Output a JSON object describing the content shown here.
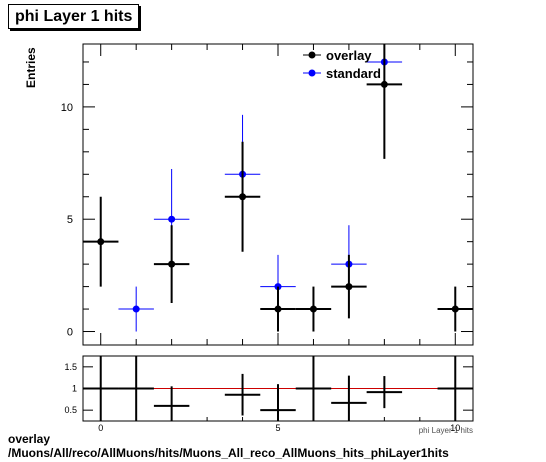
{
  "title": "phi Layer 1 hits",
  "footer": {
    "line1": "overlay",
    "line2": "/Muons/All/reco/AllMuons/hits/Muons_All_reco_AllMuons_hits_phiLayer1hits"
  },
  "colors": {
    "overlay": "#000000",
    "standard": "#0000ff",
    "ratio_line": "#cc0000"
  },
  "chart_data": [
    {
      "type": "scatter",
      "ylabel": "Entries",
      "xlabel": "phi Layer 1 hits",
      "xlim": [
        -0.5,
        10.5
      ],
      "ylim": [
        -0.6,
        12.8
      ],
      "x_ticks": [
        "0",
        "5",
        "10"
      ],
      "y_ticks": [
        "0",
        "5",
        "10"
      ],
      "legend": {
        "position": "top-right",
        "entries": [
          "overlay",
          "standard"
        ]
      },
      "series": [
        {
          "name": "overlay",
          "x": [
            0,
            2,
            4,
            5,
            6,
            7,
            8,
            10
          ],
          "y": [
            4,
            3,
            6,
            1,
            1,
            2,
            11,
            1
          ]
        },
        {
          "name": "standard",
          "x": [
            1,
            2,
            4,
            5,
            7,
            8
          ],
          "y": [
            1,
            5,
            7,
            2,
            3,
            12
          ]
        }
      ]
    },
    {
      "type": "scatter",
      "xlim": [
        -0.5,
        10.5
      ],
      "ylim": [
        0.25,
        1.75
      ],
      "y_ticks": [
        "0.5",
        "1",
        "1.5"
      ],
      "x_ticks": [
        "0",
        "5",
        "10"
      ],
      "reference_line": 1,
      "series": [
        {
          "name": "ratio",
          "x": [
            2,
            4,
            5,
            7,
            8
          ],
          "y": [
            0.6,
            0.857,
            0.5,
            0.667,
            0.917
          ],
          "yerr": [
            0.45,
            0.48,
            0.6,
            0.63,
            0.37
          ]
        }
      ]
    }
  ]
}
